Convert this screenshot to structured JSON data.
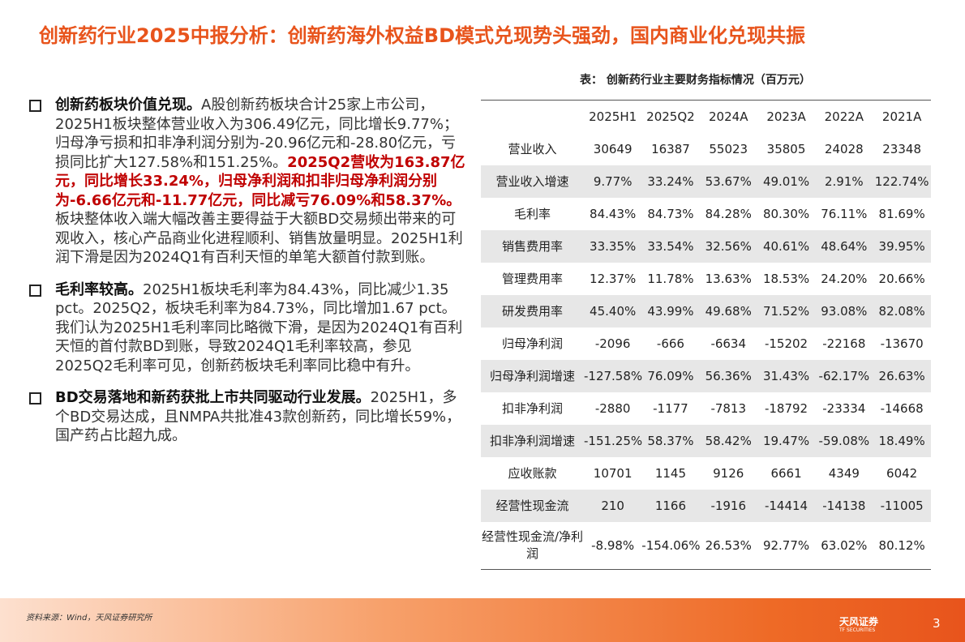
{
  "title": "创新药行业2025中报分析：创新药海外权益BD模式兑现势头强劲，国内商业化兑现共振",
  "bullets": [
    {
      "head": "创新药板块价值兑现。",
      "text": "A股创新药板块合计25家上市公司，2025H1板块整体营业收入为306.49亿元，同比增长9.77%；归母净亏损和扣非净利润分别为-20.96亿元和-28.80亿元，亏损同比扩大127.58%和151.25%。",
      "highlight": "2025Q2营收为163.87亿元，同比增长33.24%，归母净利润和扣非归母净利润分别为-6.66亿元和-11.77亿元，同比减亏76.09%和58.37%。",
      "tail": "板块整体收入端大幅改善主要得益于大额BD交易频出带来的可观收入，核心产品商业化进程顺利、销售放量明显。2025H1利润下滑是因为2024Q1有百利天恒的单笔大额首付款到账。"
    },
    {
      "head": "毛利率较高。",
      "text": "2025H1板块毛利率为84.43%，同比减少1.35 pct。2025Q2，板块毛利率为84.73%，同比增加1.67 pct。我们认为2025H1毛利率同比略微下滑，是因为2024Q1有百利天恒的首付款BD到账，导致2024Q1毛利率较高，参见2025Q2毛利率可见，创新药板块毛利率同比稳中有升。"
    },
    {
      "head": "BD交易落地和新药获批上市共同驱动行业发展。",
      "text": "2025H1，多个BD交易达成，且NMPA共批准43款创新药，同比增长59%，国产药占比超九成。"
    }
  ],
  "table": {
    "caption": "表： 创新药行业主要财务指标情况（百万元）",
    "columns": [
      "2025H1",
      "2025Q2",
      "2024A",
      "2023A",
      "2022A",
      "2021A"
    ],
    "rows": [
      [
        "营业收入",
        "30649",
        "16387",
        "55023",
        "35805",
        "24028",
        "23348"
      ],
      [
        "营业收入增速",
        "9.77%",
        "33.24%",
        "53.67%",
        "49.01%",
        "2.91%",
        "122.74%"
      ],
      [
        "毛利率",
        "84.43%",
        "84.73%",
        "84.28%",
        "80.30%",
        "76.11%",
        "81.69%"
      ],
      [
        "销售费用率",
        "33.35%",
        "33.54%",
        "32.56%",
        "40.61%",
        "48.64%",
        "39.95%"
      ],
      [
        "管理费用率",
        "12.37%",
        "11.78%",
        "13.63%",
        "18.53%",
        "24.20%",
        "20.66%"
      ],
      [
        "研发费用率",
        "45.40%",
        "43.99%",
        "49.68%",
        "71.52%",
        "93.08%",
        "82.08%"
      ],
      [
        "归母净利润",
        "-2096",
        "-666",
        "-6634",
        "-15202",
        "-22168",
        "-13670"
      ],
      [
        "归母净利润增速",
        "-127.58%",
        "76.09%",
        "56.36%",
        "31.43%",
        "-62.17%",
        "26.63%"
      ],
      [
        "扣非净利润",
        "-2880",
        "-1177",
        "-7813",
        "-18792",
        "-23334",
        "-14668"
      ],
      [
        "扣非净利润增速",
        "-151.25%",
        "58.37%",
        "58.42%",
        "19.47%",
        "-59.08%",
        "18.49%"
      ],
      [
        "应收账款",
        "10701",
        "1145",
        "9126",
        "6661",
        "4349",
        "6042"
      ],
      [
        "经营性现金流",
        "210",
        "1166",
        "-1916",
        "-14414",
        "-14138",
        "-11005"
      ],
      [
        "经营性现金流/净利润",
        "-8.98%",
        "-154.06%",
        "26.53%",
        "92.77%",
        "63.02%",
        "80.12%"
      ]
    ]
  },
  "footer": {
    "source": "资料来源：Wind，天风证券研究所",
    "logo": "天风证券",
    "logo_en": "TF SECURITIES",
    "page": "3"
  }
}
